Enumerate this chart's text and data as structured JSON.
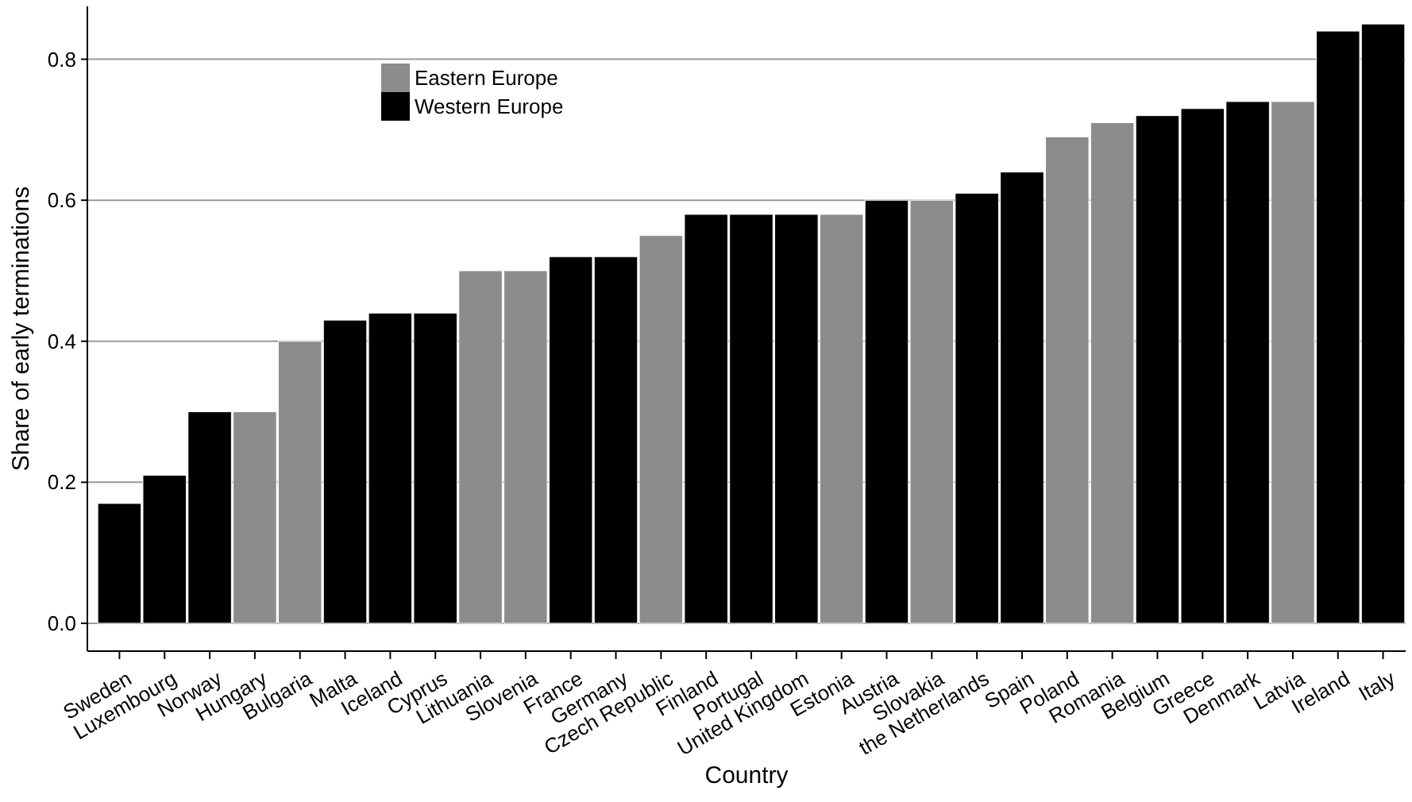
{
  "chart_data": {
    "type": "bar",
    "xlabel": "Country",
    "ylabel": "Share of early terminations",
    "categories": [
      "Sweden",
      "Luxembourg",
      "Norway",
      "Hungary",
      "Bulgaria",
      "Malta",
      "Iceland",
      "Cyprus",
      "Lithuania",
      "Slovenia",
      "France",
      "Germany",
      "Czech Republic",
      "Finland",
      "Portugal",
      "United Kingdom",
      "Estonia",
      "Austria",
      "Slovakia",
      "the Netherlands",
      "Spain",
      "Poland",
      "Romania",
      "Belgium",
      "Greece",
      "Denmark",
      "Latvia",
      "Ireland",
      "Italy"
    ],
    "series": [
      {
        "name": "Eastern Europe",
        "color": "#8c8c8c",
        "values": [
          null,
          null,
          null,
          0.3,
          0.4,
          null,
          null,
          null,
          0.5,
          0.5,
          null,
          null,
          0.55,
          null,
          null,
          null,
          0.58,
          null,
          0.6,
          null,
          null,
          0.69,
          0.71,
          null,
          null,
          null,
          0.74,
          null,
          null
        ]
      },
      {
        "name": "Western Europe",
        "color": "#000000",
        "values": [
          0.17,
          0.21,
          0.3,
          null,
          null,
          0.43,
          0.44,
          0.44,
          null,
          null,
          0.52,
          0.52,
          null,
          0.58,
          0.58,
          0.58,
          null,
          0.6,
          null,
          0.61,
          0.64,
          null,
          null,
          0.72,
          0.73,
          0.74,
          null,
          0.84,
          0.85
        ]
      }
    ],
    "ylim": [
      -0.035,
      0.875
    ],
    "yticks": [
      {
        "value": 0,
        "label": "0.0"
      },
      {
        "value": 0.2,
        "label": "0.2"
      },
      {
        "value": 0.4,
        "label": "0.4"
      },
      {
        "value": 0.6,
        "label": "0.6"
      },
      {
        "value": 0.8,
        "label": "0.8"
      }
    ],
    "grid": "y",
    "legend": "top left"
  }
}
